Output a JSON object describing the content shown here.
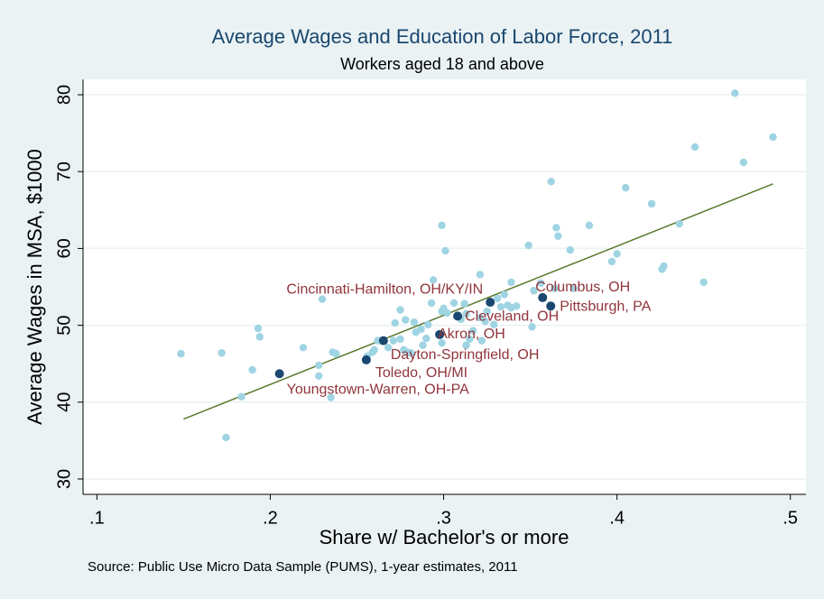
{
  "chart_data": {
    "type": "scatter",
    "title": "Average Wages and Education of Labor Force, 2011",
    "subtitle": "Workers aged 18 and above",
    "x_label": "Share w/ Bachelor's or more",
    "y_label": "Average Wages in MSA, $1000",
    "note": "Source: Public Use Micro Data Sample (PUMS), 1-year estimates, 2011",
    "xlim": [
      0.092,
      0.509
    ],
    "ylim": [
      28,
      82
    ],
    "xticks": [
      {
        "value": 0.1,
        "label": ".1"
      },
      {
        "value": 0.2,
        "label": ".2"
      },
      {
        "value": 0.3,
        "label": ".3"
      },
      {
        "value": 0.4,
        "label": ".4"
      },
      {
        "value": 0.5,
        "label": ".5"
      }
    ],
    "yticks": [
      30,
      40,
      50,
      60,
      70,
      80
    ],
    "grid": true,
    "series": [
      {
        "color": "#9fd4e3",
        "x": [
          0.1485,
          0.172,
          0.1745,
          0.1897,
          0.1834,
          0.193,
          0.1939,
          0.219,
          0.23,
          0.228,
          0.228,
          0.235,
          0.236,
          0.238,
          0.256,
          0.259,
          0.262,
          0.264,
          0.26,
          0.268,
          0.271,
          0.272,
          0.275,
          0.275,
          0.277,
          0.278,
          0.279,
          0.281,
          0.283,
          0.284,
          0.287,
          0.288,
          0.29,
          0.291,
          0.293,
          0.294,
          0.299,
          0.299,
          0.299,
          0.301,
          0.3,
          0.302,
          0.306,
          0.31,
          0.312,
          0.313,
          0.313,
          0.315,
          0.317,
          0.321,
          0.321,
          0.322,
          0.324,
          0.325,
          0.329,
          0.331,
          0.333,
          0.335,
          0.337,
          0.339,
          0.339,
          0.342,
          0.349,
          0.351,
          0.352,
          0.356,
          0.362,
          0.365,
          0.366,
          0.364,
          0.373,
          0.375,
          0.384,
          0.397,
          0.4,
          0.405,
          0.42,
          0.427,
          0.426,
          0.436,
          0.445,
          0.45,
          0.468,
          0.473,
          0.49
        ],
        "values": [
          46.3,
          46.4,
          35.4,
          44.2,
          40.7,
          49.6,
          48.5,
          47.1,
          53.4,
          43.4,
          44.8,
          40.6,
          46.5,
          46.3,
          46.0,
          46.5,
          48.0,
          48.0,
          46.8,
          47.1,
          48.0,
          50.3,
          52.0,
          48.2,
          46.8,
          50.7,
          46.5,
          46.4,
          50.4,
          49.1,
          49.5,
          47.4,
          48.3,
          50.1,
          52.9,
          55.9,
          51.8,
          63.0,
          47.7,
          59.7,
          52.2,
          51.6,
          52.9,
          50.8,
          52.8,
          51.5,
          47.4,
          48.2,
          49.3,
          51.0,
          56.6,
          48.0,
          50.5,
          51.8,
          50.1,
          53.5,
          52.4,
          54.0,
          52.6,
          55.6,
          52.3,
          52.5,
          60.4,
          49.8,
          54.5,
          55.5,
          68.7,
          62.7,
          61.6,
          54.8,
          59.8,
          54.8,
          63.0,
          58.3,
          59.3,
          67.9,
          65.8,
          57.7,
          57.3,
          63.2,
          73.2,
          55.6,
          80.2,
          71.2,
          74.5
        ]
      },
      {
        "color": "#1a476f",
        "label_color": "#90353b",
        "x": [
          0.2053,
          0.2554,
          0.2653,
          0.2977,
          0.3081,
          0.3269,
          0.3571,
          0.3618
        ],
        "values": [
          43.7,
          45.5,
          48.0,
          48.8,
          51.2,
          53.0,
          53.6,
          52.5
        ],
        "labels": [
          "Youngstown-Warren, OH-PA",
          "Toledo, OH/MI",
          "Dayton-Springfield, OH",
          "Akron, OH",
          "Cleveland, OH",
          "Cincinnati-Hamilton, OH/KY/IN",
          "Columbus, OH",
          "Pittsburgh, PA"
        ]
      }
    ],
    "fit": {
      "color": "#5a7a2e",
      "x": [
        0.15,
        0.49
      ],
      "values": [
        37.8,
        68.4
      ]
    }
  }
}
